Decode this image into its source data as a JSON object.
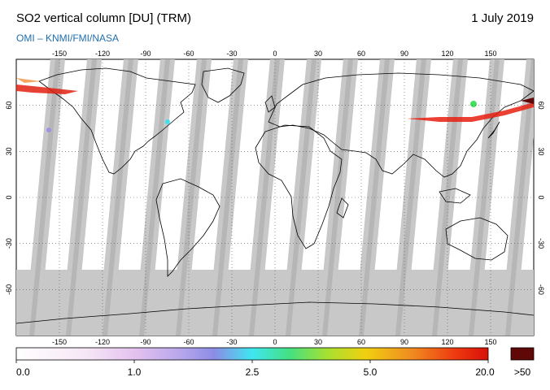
{
  "header": {
    "title": "SO2 vertical column [DU] (TRM)",
    "date": "1 July 2019",
    "source": "OMI  –  KNMI/FMI/NASA"
  },
  "axes": {
    "lon_ticks": [
      "-150",
      "-120",
      "-90",
      "-60",
      "-30",
      "0",
      "30",
      "60",
      "90",
      "120",
      "150"
    ],
    "lat_ticks": [
      "60",
      "30",
      "0",
      "-30",
      "-60"
    ]
  },
  "colorbar": {
    "labels": [
      "0.0",
      "1.0",
      "2.5",
      "5.0",
      "20.0",
      ">50"
    ],
    "colors": [
      "#ffffff",
      "#f4e4f4",
      "#d8b8ec",
      "#9a94e6",
      "#3fe0f0",
      "#44e060",
      "#c8e020",
      "#f2c010",
      "#f08020",
      "#e82010",
      "#600808"
    ]
  },
  "map_colors": {
    "swath": "#c8c8c8",
    "swath_dark": "#a8a8a8",
    "coast": "#000000"
  }
}
